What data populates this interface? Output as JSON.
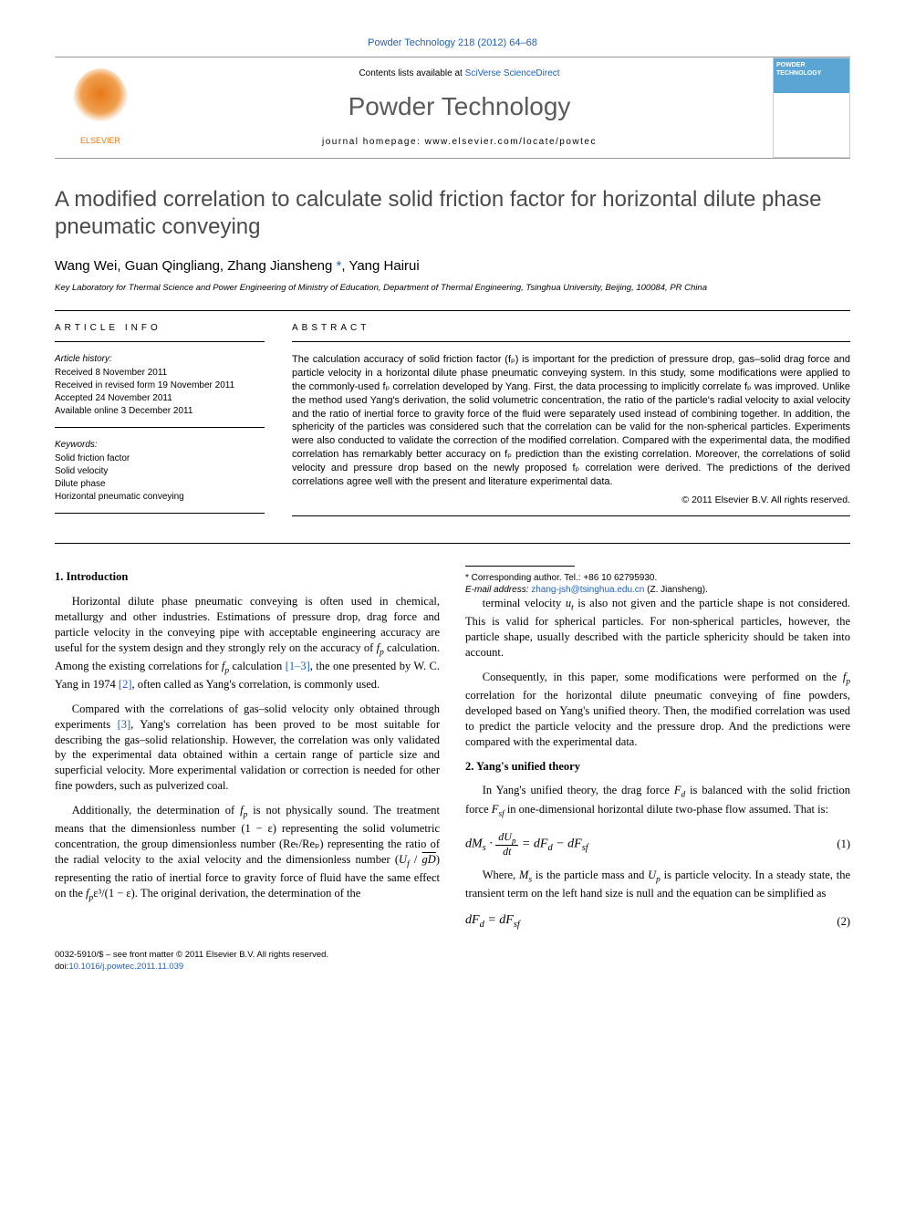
{
  "citation": "Powder Technology 218 (2012) 64–68",
  "contents_prefix": "Contents lists available at ",
  "contents_link": "SciVerse ScienceDirect",
  "journal_name": "Powder Technology",
  "homepage_label": "journal homepage: www.elsevier.com/locate/powtec",
  "elsevier_label": "ELSEVIER",
  "cover_label": "POWDER TECHNOLOGY",
  "title": "A modified correlation to calculate solid friction factor for horizontal dilute phase pneumatic conveying",
  "authors_html": "Wang Wei, Guan Qingliang, Zhang Jiansheng ",
  "corr_symbol": "*",
  "authors_tail": ", Yang Hairui",
  "affiliation": "Key Laboratory for Thermal Science and Power Engineering of Ministry of Education, Department of Thermal Engineering, Tsinghua University, Beijing, 100084, PR China",
  "info_heading": "article info",
  "abstract_heading": "abstract",
  "history_label": "Article history:",
  "history": {
    "received": "Received 8 November 2011",
    "revised": "Received in revised form 19 November 2011",
    "accepted": "Accepted 24 November 2011",
    "online": "Available online 3 December 2011"
  },
  "keywords_label": "Keywords:",
  "keywords": [
    "Solid friction factor",
    "Solid velocity",
    "Dilute phase",
    "Horizontal pneumatic conveying"
  ],
  "abstract": "The calculation accuracy of solid friction factor (fₚ) is important for the prediction of pressure drop, gas–solid drag force and particle velocity in a horizontal dilute phase pneumatic conveying system. In this study, some modifications were applied to the commonly-used fₚ correlation developed by Yang. First, the data processing to implicitly correlate fₚ was improved. Unlike the method used Yang's derivation, the solid volumetric concentration, the ratio of the particle's radial velocity to axial velocity and the ratio of inertial force to gravity force of the fluid were separately used instead of combining together. In addition, the sphericity of the particles was considered such that the correlation can be valid for the non-spherical particles. Experiments were also conducted to validate the correction of the modified correlation. Compared with the experimental data, the modified correlation has remarkably better accuracy on fₚ prediction than the existing correlation. Moreover, the correlations of solid velocity and pressure drop based on the newly proposed fₚ correlation were derived. The predictions of the derived correlations agree well with the present and literature experimental data.",
  "copyright": "© 2011 Elsevier B.V. All rights reserved.",
  "sections": {
    "s1_heading": "1. Introduction",
    "s1p1_a": "Horizontal dilute phase pneumatic conveying is often used in chemical, metallurgy and other industries. Estimations of pressure drop, drag force and particle velocity in the conveying pipe with acceptable engineering accuracy are useful for the system design and they strongly rely on the accuracy of ",
    "s1p1_b": " calculation. Among the existing correlations for ",
    "s1p1_c": " calculation ",
    "ref13": "[1–3]",
    "s1p1_d": ", the one presented by W. C. Yang in 1974 ",
    "ref2": "[2]",
    "s1p1_e": ", often called as Yang's correlation, is commonly used.",
    "s1p2_a": "Compared with the correlations of gas–solid velocity only obtained through experiments ",
    "ref3": "[3]",
    "s1p2_b": ", Yang's correlation has been proved to be most suitable for describing the gas–solid relationship. However, the correlation was only validated by the experimental data obtained within a certain range of particle size and superficial velocity. More experimental validation or correction is needed for other fine powders, such as pulverized coal.",
    "s1p3_a": "Additionally, the determination of ",
    "s1p3_b": " is not physically sound. The treatment means that the dimensionless number (1 − ε) representing the solid volumetric concentration, the group dimensionless number (Reₜ/Reₚ) representing the ratio of the radial velocity to the axial velocity and the dimensionless number ",
    "s1p3_c": " representing the ratio of inertial force to gravity force of fluid have the same effect on the ",
    "s1p3_d": "ε³/(1 − ε). The original derivation, the determination of the ",
    "s1p4_a": "terminal velocity ",
    "s1p4_b": " is also not given and the particle shape is not considered. This is valid for spherical particles. For non-spherical particles, however, the particle shape, usually described with the particle sphericity should be taken into account.",
    "s1p5_a": "Consequently, in this paper, some modifications were performed on the ",
    "s1p5_b": " correlation for the horizontal dilute pneumatic conveying of fine powders, developed based on Yang's unified theory. Then, the modified correlation was used to predict the particle velocity and the pressure drop. And the predictions were compared with the experimental data.",
    "s2_heading": "2. Yang's unified theory",
    "s2p1_a": "In Yang's unified theory, the drag force ",
    "s2p1_b": " is balanced with the solid friction force ",
    "s2p1_c": " in one-dimensional horizontal dilute two-phase flow assumed. That is:",
    "s2p2_a": "Where, ",
    "s2p2_b": " is the particle mass and ",
    "s2p2_c": " is particle velocity. In a steady state, the transient term on the left hand size is null and the equation can be simplified as"
  },
  "eqn1_num": "(1)",
  "eqn2_num": "(2)",
  "footnote_corr_a": "* Corresponding author. Tel.: +86 10 62795930.",
  "footnote_email_label": "E-mail address: ",
  "footnote_email": "zhang-jsh@tsinghua.edu.cn",
  "footnote_email_tail": " (Z. Jiansheng).",
  "footer_left1": "0032-5910/$ – see front matter © 2011 Elsevier B.V. All rights reserved.",
  "footer_doi_prefix": "doi:",
  "footer_doi": "10.1016/j.powtec.2011.11.039",
  "colors": {
    "link": "#2060c0",
    "elsevier": "#e67817",
    "jname": "#5a5a5a",
    "cover_top": "#5aa5d3"
  }
}
